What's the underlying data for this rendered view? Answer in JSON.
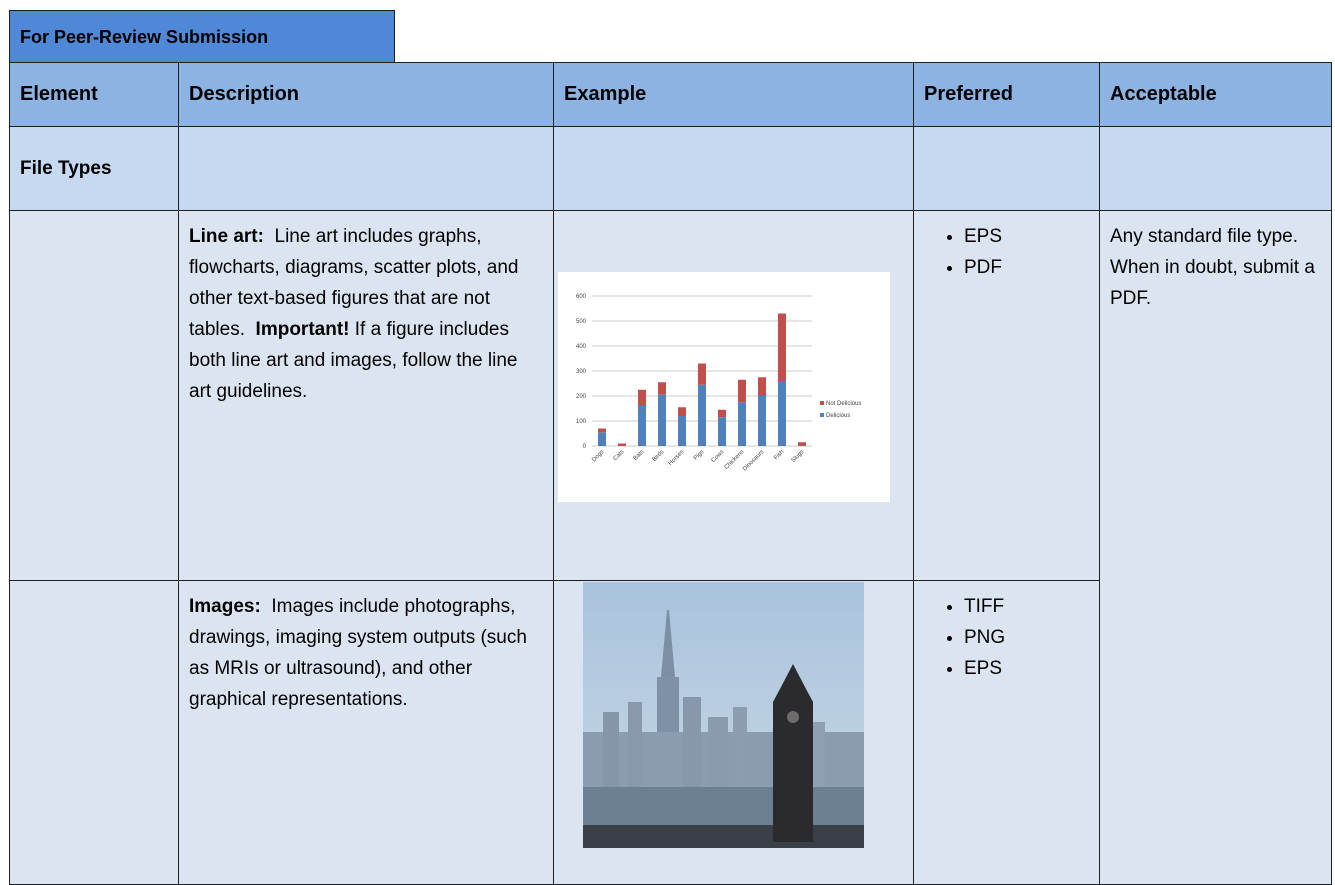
{
  "tab": "For Peer-Review Submission",
  "table": {
    "header": [
      "Element",
      "Description",
      "Example",
      "Preferred",
      "Acceptable"
    ],
    "rows": [
      {
        "element": "File Types"
      },
      {
        "description_label": "Line art:",
        "description": "Line art includes graphs, flowcharts, diagrams, scatter plots, and other text-based figures that are not tables.",
        "important_label": "Important!",
        "description_tail": "If a figure includes both line art and images, follow the line art guidelines.",
        "example": {
          "type": "bar",
          "categories": [
            "Dogs",
            "Cats",
            "Bats",
            "Birds",
            "Horses",
            "Pigs",
            "Cows",
            "Chickens",
            "Dinosaurs",
            "Fish",
            "Slugs"
          ],
          "series": [
            {
              "name": "Delicious",
              "color": "#4f81bd",
              "values": [
                55,
                0,
                160,
                205,
                120,
                245,
                115,
                175,
                200,
                260,
                0
              ]
            },
            {
              "name": "Not Delicious",
              "color": "#c0504d",
              "values": [
                15,
                10,
                65,
                50,
                35,
                85,
                30,
                90,
                75,
                270,
                15
              ]
            }
          ],
          "ylim": [
            0,
            600
          ],
          "yticks": [
            0,
            100,
            200,
            300,
            400,
            500,
            600
          ],
          "grid": true,
          "legend": "right"
        },
        "preferred": [
          "EPS",
          "PDF"
        ],
        "acceptable": "Any standard file type.  When in doubt, submit a PDF."
      },
      {
        "description_label": "Images:",
        "description": "Images include photographs, drawings, imaging system outputs (such as MRIs or ultrasound), and other graphical representations.",
        "preferred": [
          "TIFF",
          "PNG",
          "EPS"
        ]
      }
    ]
  }
}
